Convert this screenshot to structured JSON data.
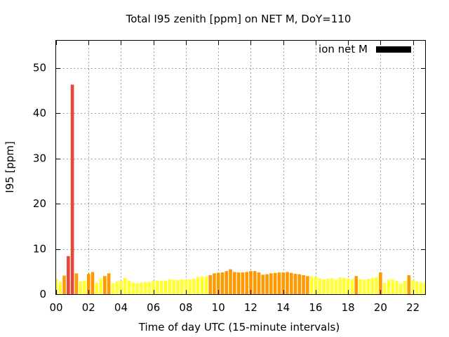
{
  "chart_data": {
    "type": "bar",
    "title": "Total I95 zenith [ppm] on NET M, DoY=110",
    "xlabel": "Time of day UTC (15-minute intervals)",
    "ylabel": "I95 [ppm]",
    "xlim": [
      0,
      22.75
    ],
    "ylim": [
      0,
      56
    ],
    "x_ticks": [
      "00",
      "02",
      "04",
      "06",
      "08",
      "10",
      "12",
      "14",
      "16",
      "18",
      "20",
      "22"
    ],
    "y_ticks": [
      "0",
      "10",
      "20",
      "30",
      "40",
      "50"
    ],
    "grid": true,
    "legend": {
      "label": "ion net M",
      "color": "#000000",
      "position": "top-right"
    },
    "bar_interval_hours": 0.25,
    "color_scale": {
      "low": "#ffff33",
      "mid": "#ff9900",
      "high": "#e8473b"
    },
    "series": [
      {
        "values": [
          3.4,
          2.7,
          4.1,
          8.4,
          46.3,
          4.6,
          2.8,
          3.0,
          4.5,
          4.9,
          2.5,
          3.5,
          4.0,
          4.6,
          2.4,
          2.8,
          3.0,
          3.6,
          3.0,
          2.6,
          2.4,
          2.6,
          2.7,
          2.7,
          3.0,
          3.0,
          2.9,
          3.0,
          3.3,
          3.2,
          3.1,
          3.3,
          3.2,
          3.3,
          3.4,
          3.8,
          3.9,
          3.9,
          4.2,
          4.6,
          4.7,
          4.8,
          5.1,
          5.5,
          4.9,
          4.8,
          4.8,
          4.9,
          5.1,
          5.1,
          4.8,
          4.3,
          4.4,
          4.6,
          4.7,
          4.8,
          4.8,
          4.9,
          4.7,
          4.5,
          4.4,
          4.2,
          4.0,
          3.9,
          3.8,
          3.5,
          3.3,
          3.4,
          3.5,
          3.2,
          3.7,
          3.6,
          3.4,
          3.3,
          4.0,
          3.3,
          3.2,
          3.4,
          3.6,
          3.8,
          4.8,
          2.5,
          3.2,
          3.3,
          2.9,
          2.3,
          3.0,
          4.2,
          3.1,
          2.8,
          2.6,
          2.5
        ]
      }
    ]
  }
}
